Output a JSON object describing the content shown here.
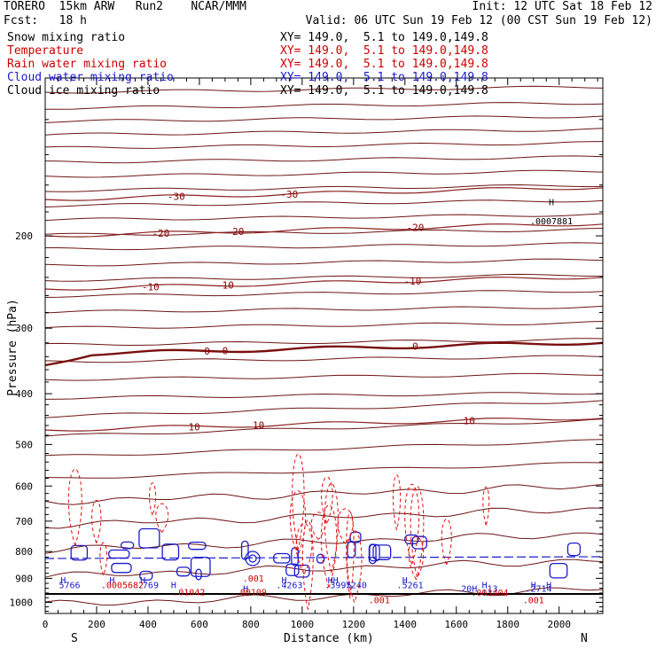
{
  "header": {
    "line1_left": "TORERO  15km ARW   Run2    NCAR/MMM",
    "line1_right": "Init: 12 UTC Sat 18 Feb 12",
    "line2_left": "Fcst:   18 h",
    "line2_right": "Valid: 06 UTC Sun 19 Feb 12 (00 CST Sun 19 Feb 12)"
  },
  "fields": [
    {
      "name": "Snow mixing ratio",
      "xy": "XY= 149.0,  5.1 to 149.0,149.8",
      "color": "#000000"
    },
    {
      "name": "Temperature",
      "xy": "XY= 149.0,  5.1 to 149.0,149.8",
      "color": "#cc0000"
    },
    {
      "name": "Rain water mixing ratio",
      "xy": "XY= 149.0,  5.1 to 149.0,149.8",
      "color": "#cc0000"
    },
    {
      "name": "Cloud water mixing ratio",
      "xy": "XY= 149.0,  5.1 to 149.0,149.8",
      "color": "#1a1acc"
    },
    {
      "name": "Cloud ice mixing ratio",
      "xy": "XY= 149.0,  5.1 to 149.0,149.8",
      "color": "#000000"
    }
  ],
  "chart_data": {
    "type": "contour",
    "xlabel": "Distance (km)",
    "ylabel": "Pressure (hPa)",
    "xlim": [
      0,
      2170
    ],
    "ylim": [
      1050,
      100
    ],
    "x_ticks": [
      0,
      200,
      400,
      600,
      800,
      1000,
      1200,
      1400,
      1600,
      1800,
      2000
    ],
    "y_ticks": [
      200,
      300,
      400,
      500,
      600,
      700,
      800,
      900,
      1000
    ],
    "x_end_labels": {
      "left": "S",
      "right": "N"
    },
    "temperature_contours": [
      {
        "level": -30,
        "label": "-30",
        "label_x": [
          510,
          950
        ]
      },
      {
        "level": -20,
        "label": "-20",
        "label_x": [
          450,
          740,
          1440
        ]
      },
      {
        "level": -10,
        "label": "-10",
        "label_x": [
          410,
          700,
          1430
        ]
      },
      {
        "level": 0,
        "label": "0",
        "label_x": [
          630,
          700,
          1440
        ]
      },
      {
        "level": 10,
        "label": "10",
        "label_x": [
          580,
          830,
          1650
        ]
      }
    ],
    "contour_annotations": [
      {
        "text": "H",
        "x": 1970,
        "p": 175
      },
      {
        "text": ".0007881",
        "x": 1970,
        "p": 190
      },
      {
        "text": ".001",
        "x": 810,
        "p": 912
      },
      {
        "text": "H",
        "x": 70,
        "p": 920
      },
      {
        "text": "5766",
        "x": 95,
        "p": 940
      },
      {
        "text": "H",
        "x": 260,
        "p": 920
      },
      {
        "text": ".0005682",
        "x": 300,
        "p": 940
      },
      {
        "text": "H",
        "x": 380,
        "p": 920
      },
      {
        "text": ".769",
        "x": 400,
        "p": 940
      },
      {
        "text": "H",
        "x": 500,
        "p": 940
      },
      {
        "text": ".01042",
        "x": 560,
        "p": 970
      },
      {
        "text": "H",
        "x": 780,
        "p": 955
      },
      {
        "text": ".00109",
        "x": 800,
        "p": 970
      },
      {
        "text": "H",
        "x": 930,
        "p": 920
      },
      {
        "text": ".4263",
        "x": 950,
        "p": 940
      },
      {
        "text": "HH",
        "x": 1120,
        "p": 920
      },
      {
        "text": ".3995",
        "x": 1140,
        "p": 940
      },
      {
        "text": ".7240",
        "x": 1200,
        "p": 940
      },
      {
        "text": "H",
        "x": 1400,
        "p": 920
      },
      {
        "text": ".5261",
        "x": 1420,
        "p": 940
      },
      {
        "text": "20H",
        "x": 1650,
        "p": 955
      },
      {
        "text": "H",
        "x": 1710,
        "p": 940
      },
      {
        "text": ".13",
        "x": 1730,
        "p": 955
      },
      {
        "text": ".003404",
        "x": 1730,
        "p": 972
      },
      {
        "text": "H",
        "x": 1900,
        "p": 940
      },
      {
        "text": ".2714",
        "x": 1920,
        "p": 955
      },
      {
        "text": "H",
        "x": 1960,
        "p": 940
      },
      {
        "text": ".001",
        "x": 1900,
        "p": 1005
      },
      {
        "text": ".001",
        "x": 1300,
        "p": 1005
      }
    ]
  }
}
